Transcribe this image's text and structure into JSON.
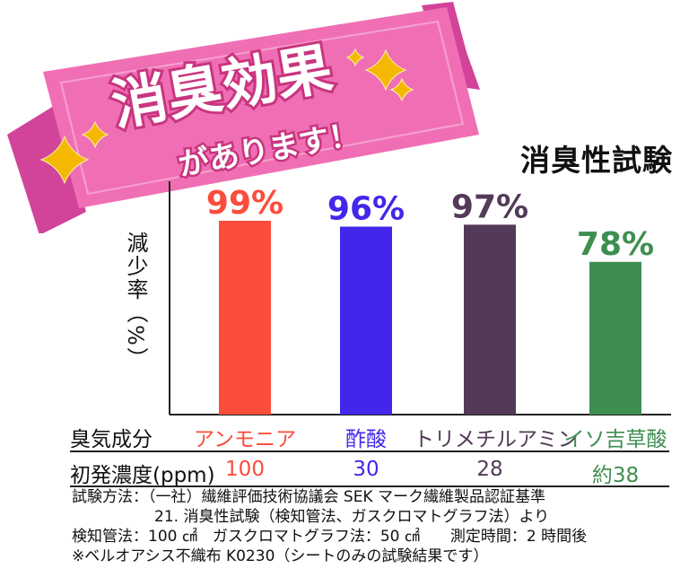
{
  "banner": {
    "title": "消臭効果",
    "subtitle": "があります！",
    "colors": {
      "ribbon": "#f06fb4",
      "ribbon_dark": "#d1449a",
      "sparkle": "#f5b800"
    }
  },
  "chart_data": {
    "type": "bar",
    "title": "消臭性試験",
    "ylabel": "減少率（%）",
    "ylim": [
      0,
      110
    ],
    "categories": [
      "アンモニア",
      "酢酸",
      "トリメチルアミン",
      "イソ吉草酸"
    ],
    "values": [
      99,
      96,
      97,
      78
    ],
    "value_labels": [
      "99%",
      "96%",
      "97%",
      "78%"
    ],
    "colors": [
      "#fb4c3c",
      "#4227ea",
      "#533a58",
      "#3e8e50"
    ],
    "grid": false
  },
  "table": {
    "odor_header": "臭気成分",
    "conc_header": "初発濃度(ppm)",
    "concentrations": [
      "100",
      "30",
      "28",
      "約38"
    ]
  },
  "notes": {
    "line1": "試験方法：（一社）繊維評価技術協議会 SEK マーク繊維製品認証基準",
    "line2": "21. 消臭性試験（検知管法、ガスクロマトグラフ法）より",
    "line3": "検知管法：100 ㎠　ガスクロマトグラフ法：50 ㎠　　測定時間：2 時間後",
    "line4": "※ベルオアシス不織布 K0230（シートのみの試験結果です）"
  }
}
